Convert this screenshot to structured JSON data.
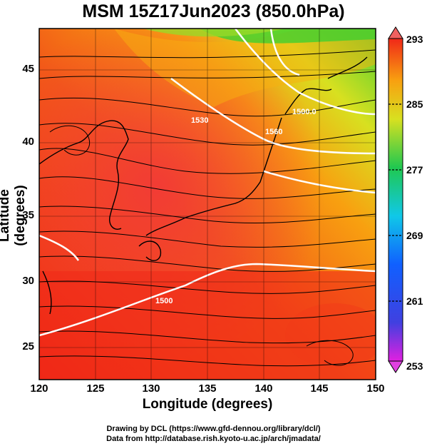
{
  "title": "MSM 15Z17Jun2023 (850.0hPa)",
  "xlabel": "Longitude (degrees)",
  "ylabel": "Latitude  (degrees)",
  "x_ticks": [
    "120",
    "125",
    "130",
    "135",
    "140",
    "145",
    "150"
  ],
  "y_ticks": [
    "45",
    "40",
    "35",
    "30",
    "25"
  ],
  "colorbar_ticks": [
    "293",
    "285",
    "277",
    "269",
    "261",
    "253"
  ],
  "credit_line1": "Drawing by DCL (https://www.gfd-dennou.org/library/dcl/)",
  "credit_line2": "Data from http://database.rish.kyoto-u.ac.jp/arch/jmadata/",
  "contour_labels": [
    "1500",
    "1530",
    "1560",
    "1500.0"
  ],
  "colors": {
    "warm": "#f03018",
    "orange": "#f89010",
    "yellow": "#e8e020",
    "green": "#40d030",
    "contour": "#ffffff"
  },
  "map": {
    "lon_range": [
      120,
      150
    ],
    "lat_range": [
      22.5,
      47.5
    ],
    "field": "temperature (K) with wind streamlines and geopotential height contours",
    "colorbar_range": [
      253,
      293
    ]
  }
}
